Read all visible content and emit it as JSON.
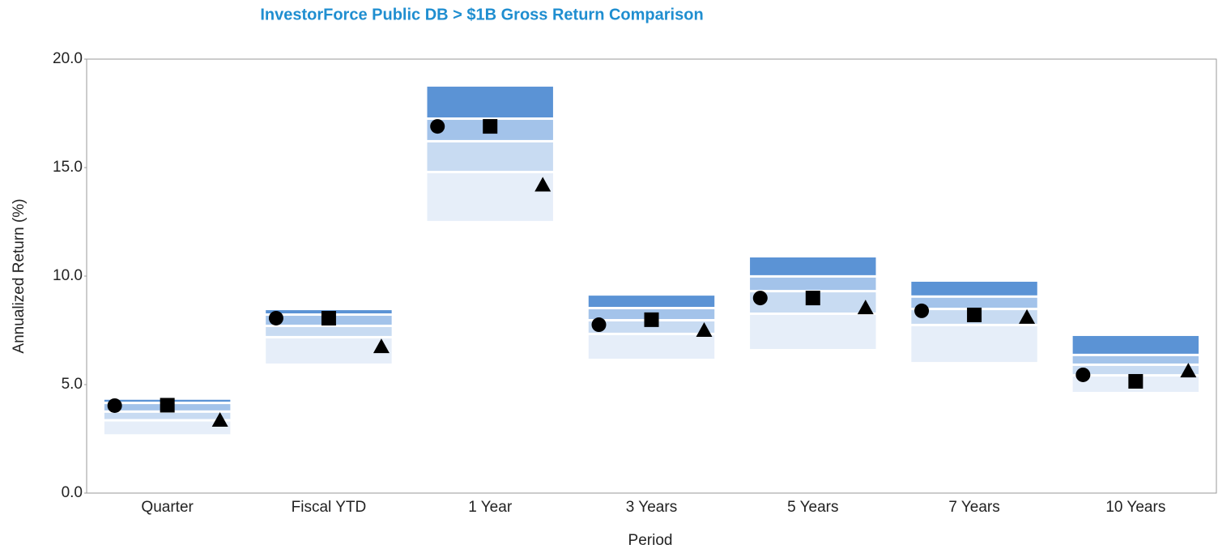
{
  "chart_data": {
    "type": "percentile_bar",
    "title": "InvestorForce Public DB > $1B Gross Return Comparison",
    "x_label": "Period",
    "y_label": "Annualized Return (%)",
    "categories": [
      "Quarter",
      "Fiscal YTD",
      "1 Year",
      "3 Years",
      "5 Years",
      "7 Years",
      "10 Years"
    ],
    "ylim": [
      0,
      20
    ],
    "yticks": [
      {
        "value": 0,
        "label": "0.0"
      },
      {
        "value": 5,
        "label": "5.0"
      },
      {
        "value": 10,
        "label": "10.0"
      },
      {
        "value": 15,
        "label": "15.0"
      },
      {
        "value": 20,
        "label": "20.0"
      }
    ],
    "band_colors": [
      "#5b93d5",
      "#a3c3ea",
      "#c8dbf2",
      "#e6eef9"
    ],
    "series": [
      {
        "values": [
          4.3,
          8.43,
          18.73,
          9.1,
          10.86,
          9.74,
          7.24
        ]
      },
      {
        "values": [
          4.1,
          8.17,
          17.2,
          8.47,
          9.93,
          9.0,
          6.31
        ]
      },
      {
        "values": [
          3.7,
          7.65,
          16.16,
          7.91,
          9.25,
          8.43,
          5.86
        ]
      },
      {
        "values": [
          3.3,
          7.13,
          14.74,
          7.28,
          8.21,
          7.69,
          5.37
        ]
      },
      {
        "values": [
          2.6,
          5.86,
          12.43,
          6.08,
          6.53,
          5.93,
          4.55
        ]
      }
    ],
    "markers": [
      {
        "shape": "circle",
        "color": "#000000",
        "values": [
          4.03,
          8.06,
          16.9,
          7.76,
          8.99,
          8.4,
          5.45
        ]
      },
      {
        "shape": "square",
        "color": "#000000",
        "values": [
          4.05,
          8.06,
          16.9,
          7.99,
          8.99,
          8.21,
          5.15
        ]
      },
      {
        "shape": "triangle",
        "color": "#000000",
        "values": [
          3.36,
          6.75,
          14.2,
          7.5,
          8.54,
          8.1,
          5.63
        ]
      }
    ]
  }
}
